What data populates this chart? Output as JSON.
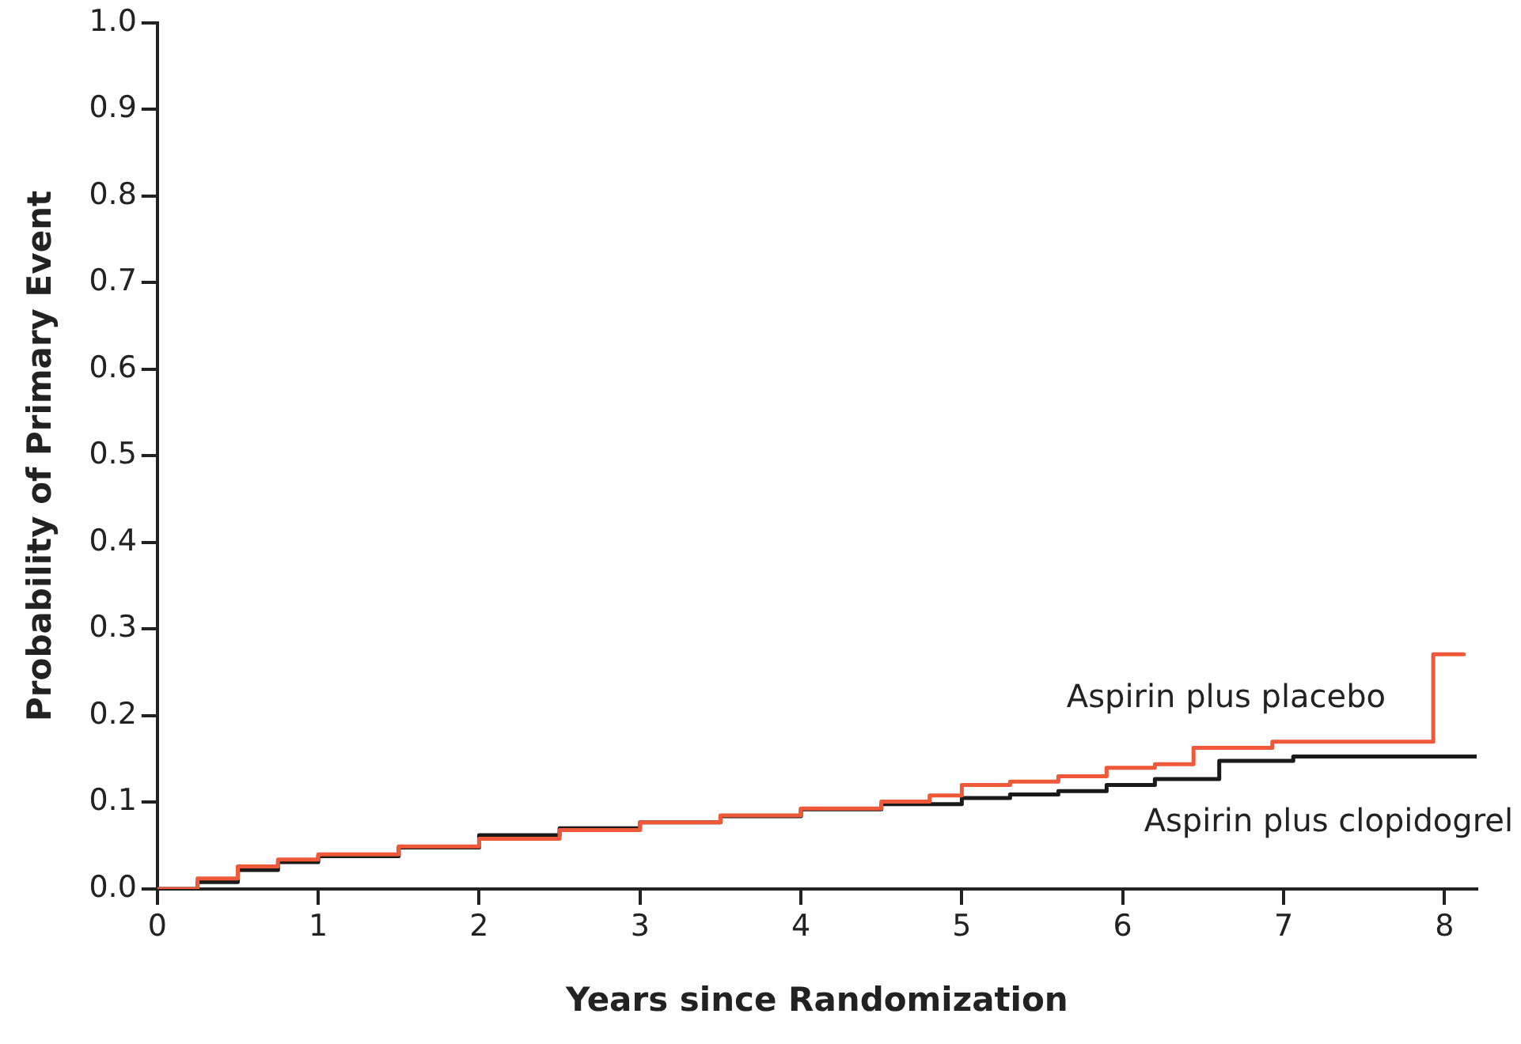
{
  "chart_data": {
    "type": "step",
    "xlabel": "Years since Randomization",
    "ylabel": "Probability of Primary Event",
    "xlim": [
      0,
      8.2
    ],
    "xticks": [
      0,
      1,
      2,
      3,
      4,
      5,
      6,
      7,
      8
    ],
    "ylim": [
      0,
      1
    ],
    "yticks": [
      {
        "value": 0,
        "label": "0.0"
      },
      {
        "value": 0.1,
        "label": "0.1"
      },
      {
        "value": 0.2,
        "label": "0.2"
      },
      {
        "value": 0.3,
        "label": "0.3"
      },
      {
        "value": 0.4,
        "label": "0.4"
      },
      {
        "value": 0.5,
        "label": "0.5"
      },
      {
        "value": 0.6,
        "label": "0.6"
      },
      {
        "value": 0.7,
        "label": "0.7"
      },
      {
        "value": 0.8,
        "label": "0.8"
      },
      {
        "value": 0.9,
        "label": "0.9"
      },
      {
        "value": 1,
        "label": "1.0"
      }
    ],
    "grid": false,
    "legend": false,
    "marker": "none",
    "series": [
      {
        "name": "Aspirin plus placebo",
        "color": "#f0583a",
        "x": [
          0,
          0.25,
          0.5,
          0.75,
          1,
          1.5,
          2,
          2.5,
          3,
          3.5,
          4,
          4.5,
          4.8,
          5,
          5.3,
          5.6,
          5.9,
          6.2,
          6.44,
          6.93,
          7.93,
          8.12
        ],
        "values": [
          0,
          0.012,
          0.026,
          0.034,
          0.04,
          0.049,
          0.058,
          0.068,
          0.077,
          0.085,
          0.093,
          0.101,
          0.108,
          0.12,
          0.124,
          0.13,
          0.14,
          0.144,
          0.163,
          0.17,
          0.271,
          0.271
        ]
      },
      {
        "name": "Aspirin plus clopidogrel",
        "color": "#1a1a1a",
        "x": [
          0,
          0.25,
          0.5,
          0.75,
          1,
          1.5,
          2,
          2.5,
          3,
          3.5,
          4,
          4.5,
          5,
          5.3,
          5.6,
          5.9,
          6.2,
          6.6,
          7.06,
          8.2
        ],
        "values": [
          0,
          0.008,
          0.022,
          0.031,
          0.038,
          0.048,
          0.062,
          0.07,
          0.077,
          0.084,
          0.092,
          0.098,
          0.105,
          0.109,
          0.113,
          0.12,
          0.127,
          0.148,
          0.153,
          0.153
        ]
      }
    ]
  }
}
